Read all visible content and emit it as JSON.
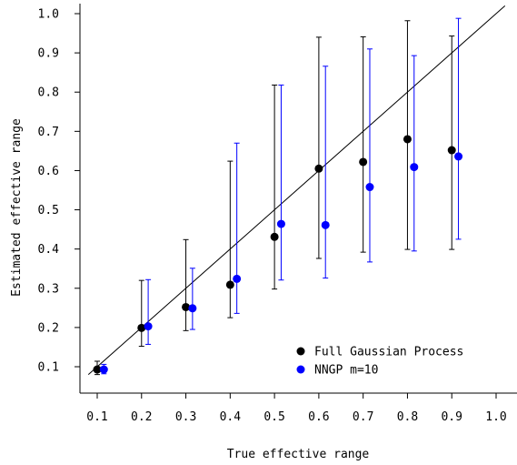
{
  "chart_data": {
    "type": "scatter",
    "title": "",
    "xlabel": "True effective range",
    "ylabel": "Estimated effective range",
    "xlim": [
      0.08,
      1.02
    ],
    "ylim": [
      0.07,
      1.02
    ],
    "x_ticks": [
      "0.1",
      "0.2",
      "0.3",
      "0.4",
      "0.5",
      "0.6",
      "0.7",
      "0.8",
      "0.9",
      "1.0"
    ],
    "y_ticks": [
      "0.1",
      "0.2",
      "0.3",
      "0.4",
      "0.5",
      "0.6",
      "0.7",
      "0.8",
      "0.9",
      "1.0"
    ],
    "reference_line": "y = x",
    "grid": false,
    "legend_position": "bottom-right",
    "series": [
      {
        "name": "Full Gaussian Process",
        "color": "#000000",
        "x": [
          0.1,
          0.2,
          0.3,
          0.4,
          0.5,
          0.6,
          0.7,
          0.8,
          0.9
        ],
        "y": [
          0.093,
          0.199,
          0.252,
          0.309,
          0.431,
          0.605,
          0.622,
          0.68,
          0.652
        ],
        "lower": [
          0.08,
          0.152,
          0.192,
          0.225,
          0.298,
          0.376,
          0.392,
          0.399,
          0.399
        ],
        "upper": [
          0.114,
          0.32,
          0.424,
          0.624,
          0.818,
          0.94,
          0.941,
          0.982,
          0.943
        ]
      },
      {
        "name": "NNGP m=10",
        "color": "#0000ff",
        "x": [
          0.115,
          0.215,
          0.315,
          0.415,
          0.515,
          0.615,
          0.715,
          0.815,
          0.915
        ],
        "y": [
          0.093,
          0.203,
          0.249,
          0.324,
          0.464,
          0.461,
          0.558,
          0.609,
          0.636
        ],
        "lower": [
          0.082,
          0.157,
          0.195,
          0.236,
          0.321,
          0.326,
          0.367,
          0.395,
          0.425
        ],
        "upper": [
          0.106,
          0.322,
          0.351,
          0.67,
          0.818,
          0.866,
          0.91,
          0.893,
          0.988
        ]
      }
    ]
  }
}
